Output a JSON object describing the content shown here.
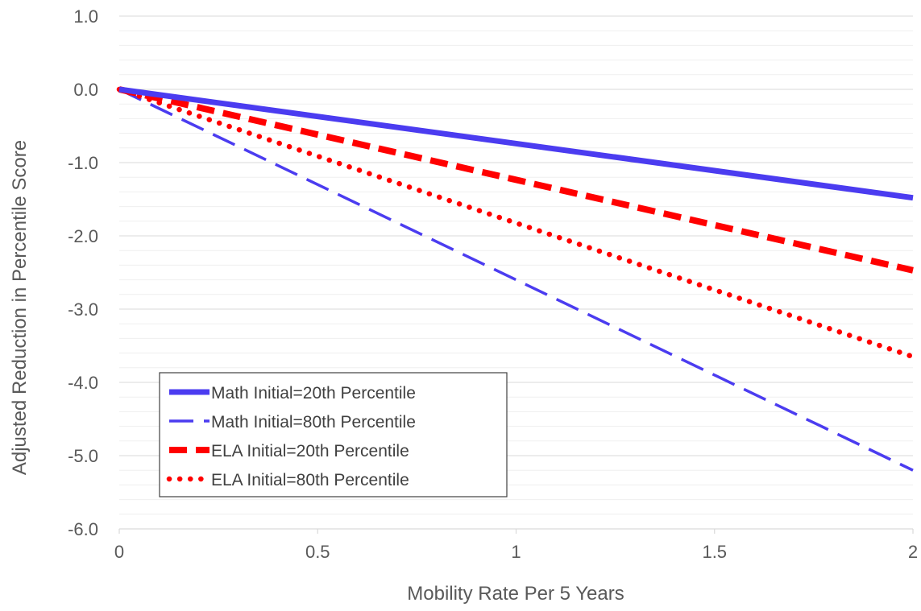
{
  "chart_data": {
    "type": "line",
    "title": "",
    "xlabel": "Mobility Rate Per 5 Years",
    "ylabel": "Adjusted Reduction in Percentile Score",
    "xlim": [
      0,
      2
    ],
    "ylim": [
      -6,
      1
    ],
    "x_ticks": [
      0,
      0.5,
      1,
      1.5,
      2
    ],
    "x_tick_labels": [
      "0",
      "0.5",
      "1",
      "1.5",
      "2"
    ],
    "y_ticks": [
      1,
      0,
      -1,
      -2,
      -3,
      -4,
      -5,
      -6
    ],
    "y_tick_labels": [
      "1.0",
      "0.0",
      "-1.0",
      "-2.0",
      "-3.0",
      "-4.0",
      "-5.0",
      "-6.0"
    ],
    "grid": true,
    "minor_grid": true,
    "legend_position": "bottom-left",
    "series": [
      {
        "name": "Math Initial=20th Percentile",
        "x": [
          0,
          2
        ],
        "y": [
          0,
          -1.48
        ],
        "color": "#4B3CF0",
        "style": "solid-thick"
      },
      {
        "name": "Math Initial=80th Percentile",
        "x": [
          0,
          2
        ],
        "y": [
          0,
          -5.2
        ],
        "color": "#4B3CF0",
        "style": "long-dash"
      },
      {
        "name": "ELA Initial=20th Percentile",
        "x": [
          0,
          2
        ],
        "y": [
          0,
          -2.47
        ],
        "color": "#FF0000",
        "style": "dash-thick"
      },
      {
        "name": "ELA Initial=80th Percentile",
        "x": [
          0,
          2
        ],
        "y": [
          0,
          -3.65
        ],
        "color": "#FF0000",
        "style": "dot"
      }
    ]
  }
}
